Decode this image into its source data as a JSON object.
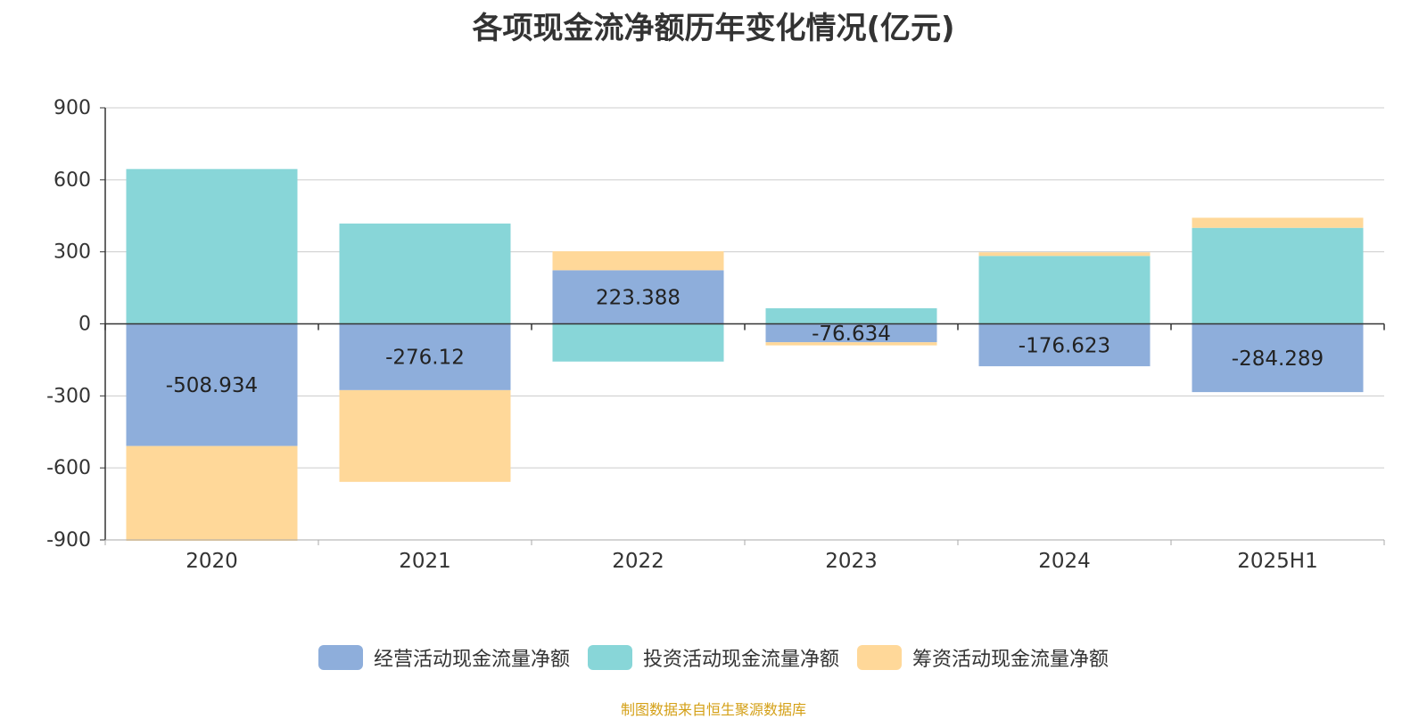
{
  "chart_data": {
    "type": "bar",
    "stacked": true,
    "title": "各项现金流净额历年变化情况(亿元)",
    "categories": [
      "2020",
      "2021",
      "2022",
      "2023",
      "2024",
      "2025H1"
    ],
    "ylim": [
      -900,
      900
    ],
    "yticks": [
      900,
      600,
      300,
      0,
      -300,
      -600,
      -900
    ],
    "grid": true,
    "legend_position": "bottom",
    "series": [
      {
        "name": "经营活动现金流量净额",
        "color": "#8eaedb",
        "values": [
          -508.934,
          -276.12,
          223.388,
          -76.634,
          -176.623,
          -284.289
        ],
        "labels": [
          "-508.934",
          "-276.12",
          "223.388",
          "-76.634",
          "-176.623",
          "-284.289"
        ]
      },
      {
        "name": "投资活动现金流量净额",
        "color": "#88d6d8",
        "values": [
          645,
          418,
          -157,
          65,
          283,
          400
        ]
      },
      {
        "name": "筹资活动现金流量净额",
        "color": "#ffd899",
        "values": [
          -395,
          -382,
          79,
          -13,
          15,
          42
        ]
      }
    ]
  },
  "source": "制图数据来自恒生聚源数据库"
}
